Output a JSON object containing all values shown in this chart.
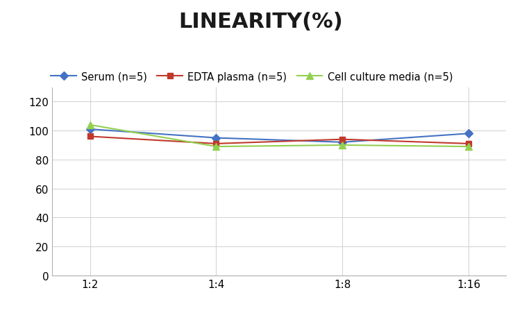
{
  "title": "LINEARITY(%)",
  "title_fontsize": 22,
  "title_fontweight": "bold",
  "x_labels": [
    "1:2",
    "1:4",
    "1:8",
    "1:16"
  ],
  "x_positions": [
    0,
    1,
    2,
    3
  ],
  "series": [
    {
      "label": "Serum (n=5)",
      "color": "#4472C4",
      "marker": "D",
      "markersize": 6,
      "values": [
        101,
        95,
        92,
        98
      ]
    },
    {
      "label": "EDTA plasma (n=5)",
      "color": "#C0392B",
      "marker": "s",
      "markersize": 6,
      "values": [
        96,
        91,
        94,
        91
      ]
    },
    {
      "label": "Cell culture media (n=5)",
      "color": "#92D050",
      "marker": "^",
      "markersize": 7,
      "values": [
        104,
        89,
        90,
        89
      ]
    }
  ],
  "ylim": [
    0,
    130
  ],
  "yticks": [
    0,
    20,
    40,
    60,
    80,
    100,
    120
  ],
  "background_color": "#ffffff",
  "grid_color": "#d5d5d5",
  "legend_fontsize": 10.5,
  "axis_fontsize": 11
}
